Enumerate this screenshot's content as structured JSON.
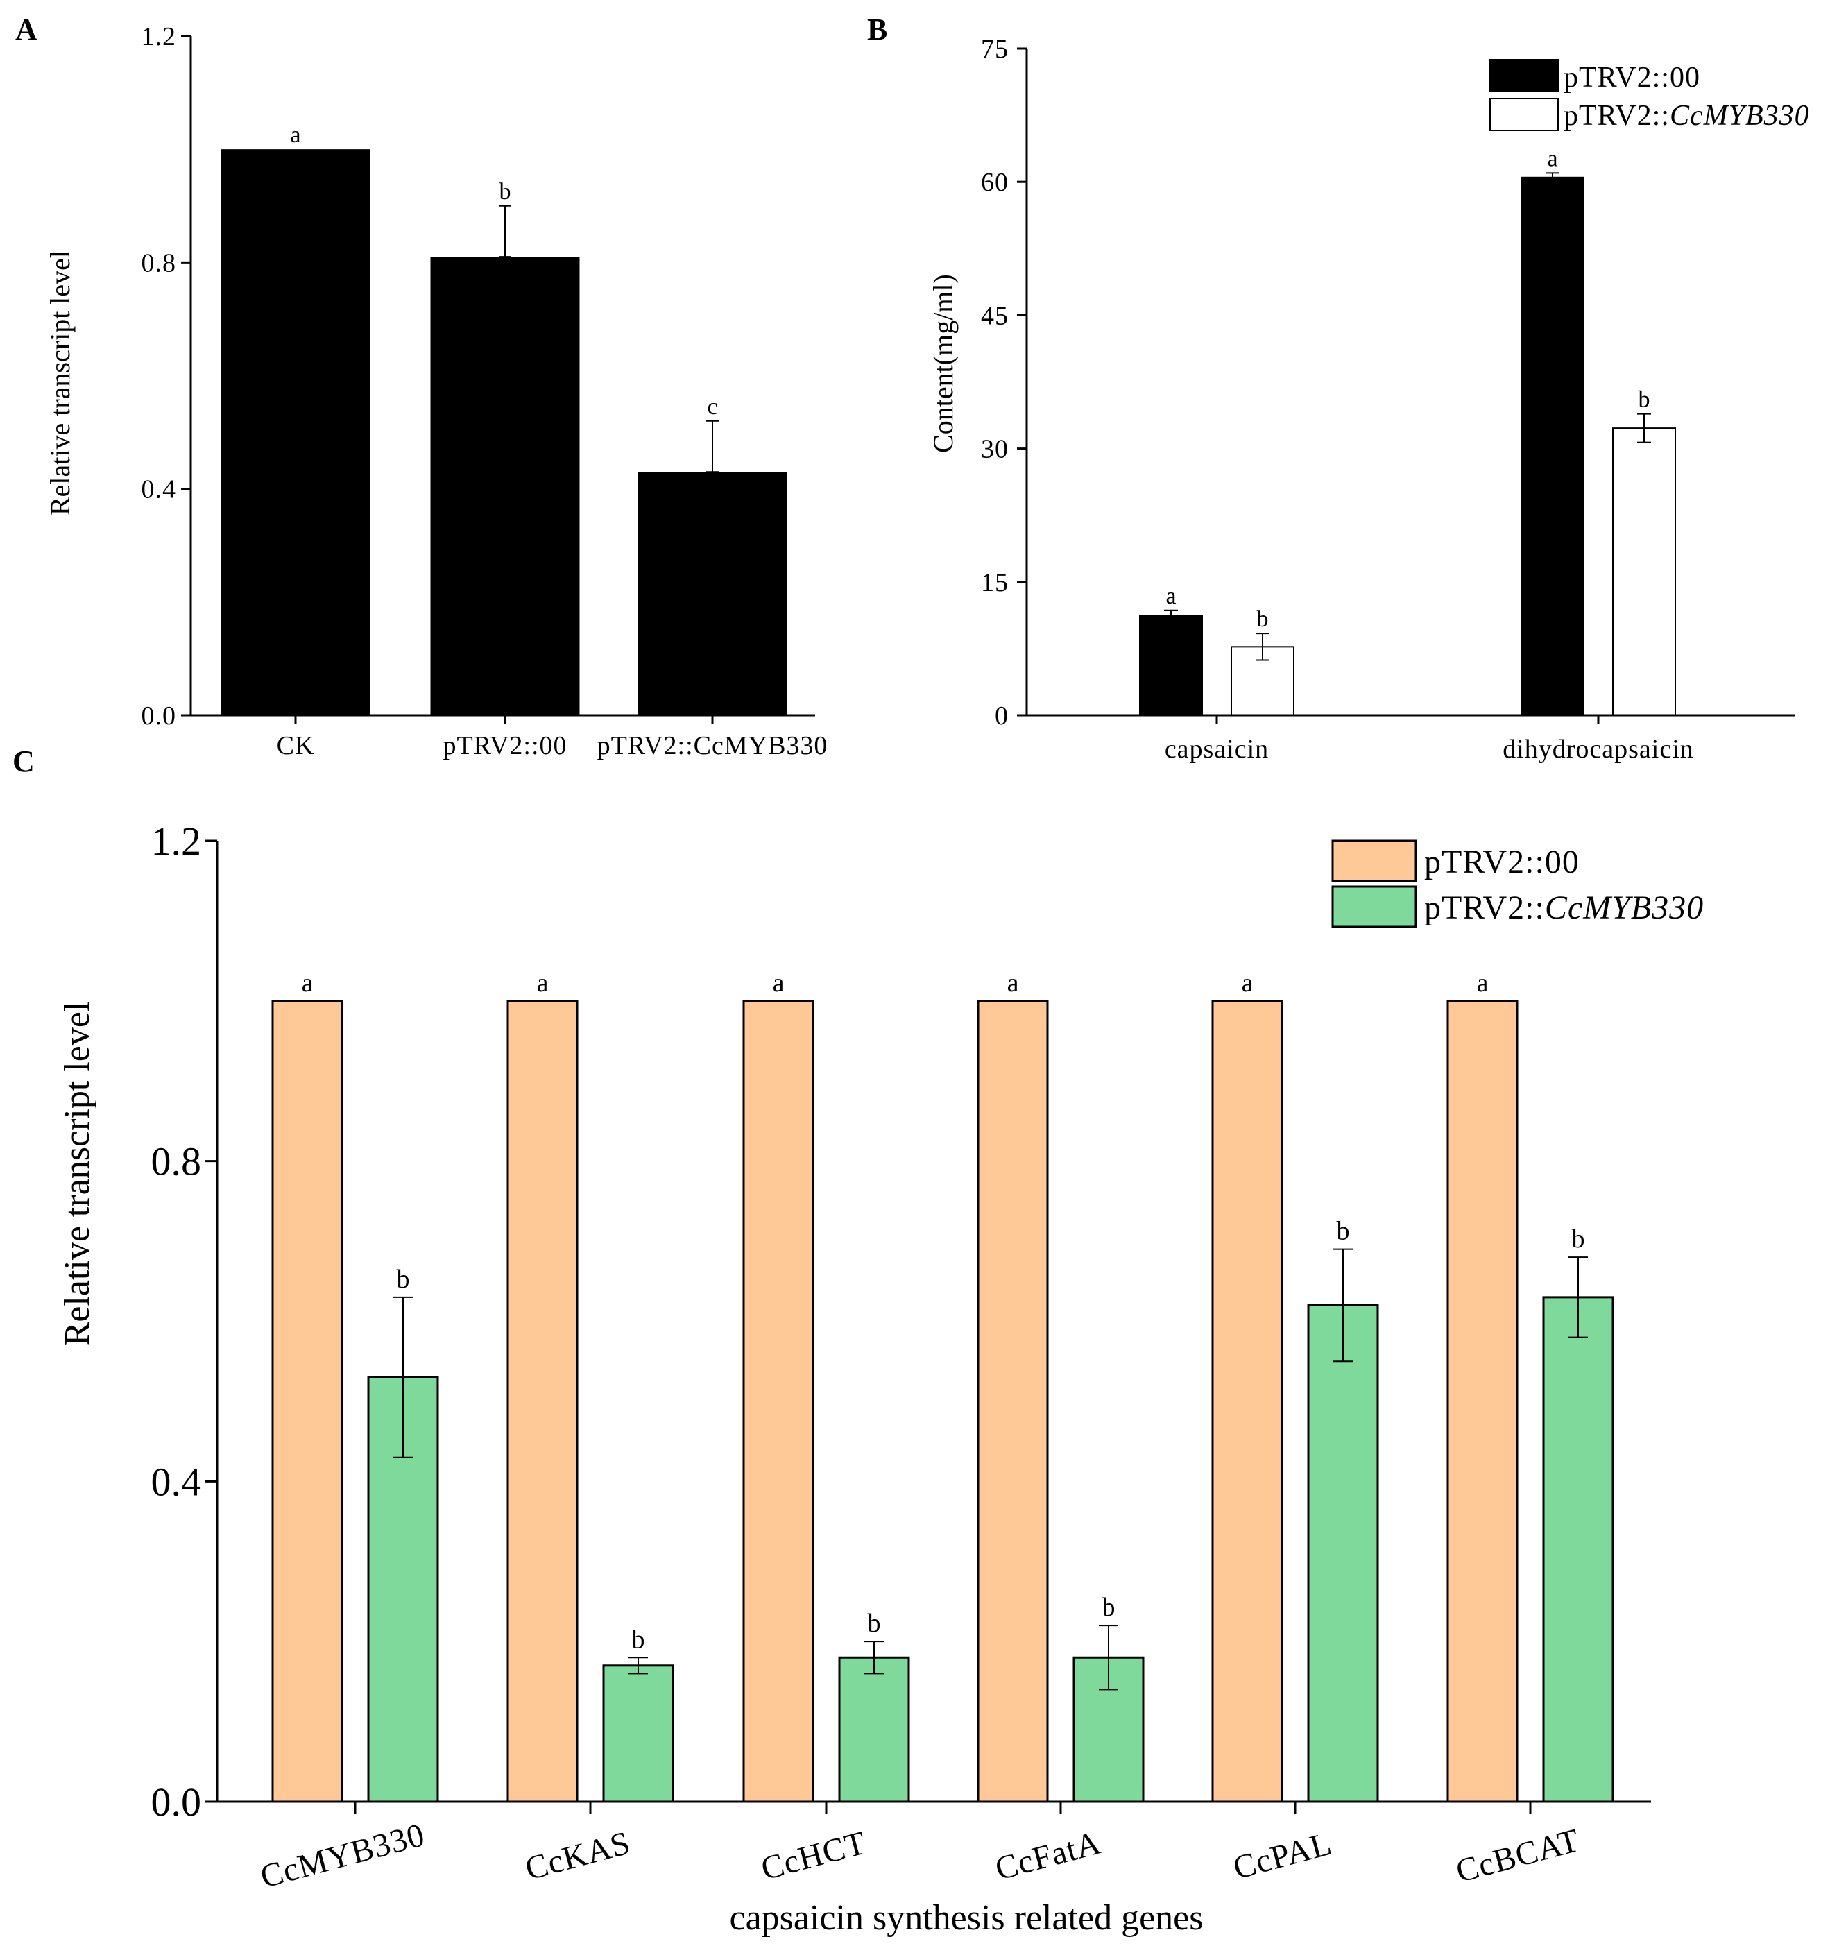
{
  "figure_labels": {
    "A": "A",
    "B": "B",
    "C": "C"
  },
  "chart_data": [
    {
      "id": "A",
      "type": "bar",
      "title": "",
      "ylabel": "Relative transcript level",
      "xlabel": "",
      "ylim": [
        0,
        1.2
      ],
      "yticks": [
        "0.0",
        "0.4",
        "0.8",
        "1.2"
      ],
      "categories": [
        "CK",
        "pTRV2::00",
        "pTRV2::CcMYB330"
      ],
      "values": [
        1.0,
        0.81,
        0.43
      ],
      "errors": [
        0,
        0.09,
        0.09
      ],
      "letters": [
        "a",
        "b",
        "c"
      ],
      "color": "#000000"
    },
    {
      "id": "B",
      "type": "bar",
      "title": "",
      "ylabel": "Content(mg/ml)",
      "xlabel": "",
      "ylim": [
        0,
        75
      ],
      "yticks": [
        "0",
        "15",
        "30",
        "45",
        "60",
        "75"
      ],
      "categories": [
        "capsaicin",
        "dihydrocapsaicin"
      ],
      "legend": {
        "position": "top-right",
        "entries": [
          "pTRV2::00",
          "pTRV2::",
          "CcMYB330"
        ]
      },
      "series": [
        {
          "name": "pTRV2::00",
          "color": "#000000",
          "values": [
            11.2,
            60.5
          ],
          "errors": [
            0.6,
            0.5
          ],
          "letters": [
            "a",
            "a"
          ]
        },
        {
          "name": "pTRV2::CcMYB330",
          "color": "#ffffff",
          "values": [
            7.7,
            32.3
          ],
          "errors": [
            1.5,
            1.6
          ],
          "letters": [
            "b",
            "b"
          ]
        }
      ]
    },
    {
      "id": "C",
      "type": "bar",
      "title": "",
      "ylabel": "Relative transcript level",
      "xlabel": "capsaicin synthesis related genes",
      "ylim": [
        0,
        1.2
      ],
      "yticks": [
        "0.0",
        "0.4",
        "0.8",
        "1.2"
      ],
      "categories": [
        "CcMYB330",
        "CcKAS",
        "CcHCT",
        "CcFatA",
        "CcPAL",
        "CcBCAT"
      ],
      "legend": {
        "position": "top-right",
        "entries": [
          "pTRV2::00",
          "pTRV2::",
          "CcMYB330"
        ]
      },
      "series": [
        {
          "name": "pTRV2::00",
          "color": "#FFC896",
          "values": [
            1.0,
            1.0,
            1.0,
            1.0,
            1.0,
            1.0
          ],
          "errors": [
            0,
            0,
            0,
            0,
            0,
            0
          ],
          "letters": [
            "a",
            "a",
            "a",
            "a",
            "a",
            "a"
          ]
        },
        {
          "name": "pTRV2::CcMYB330",
          "color": "#7ED99A",
          "values": [
            0.53,
            0.17,
            0.18,
            0.18,
            0.62,
            0.63
          ],
          "errors": [
            0.1,
            0.01,
            0.02,
            0.04,
            0.07,
            0.05
          ],
          "letters": [
            "b",
            "b",
            "b",
            "b",
            "b",
            "b"
          ]
        }
      ]
    }
  ]
}
